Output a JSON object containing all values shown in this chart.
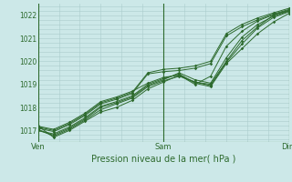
{
  "title": "",
  "xlabel": "Pression niveau de la mer( hPa )",
  "ylabel": "",
  "bg_color": "#cce8e8",
  "grid_color": "#aacccc",
  "line_color": "#2d6a2d",
  "x_ticks": [
    0,
    48,
    96
  ],
  "x_tick_labels": [
    "Ven",
    "Sam",
    "Dim"
  ],
  "ylim": [
    1016.5,
    1022.5
  ],
  "xlim": [
    0,
    96
  ],
  "yticks": [
    1017,
    1018,
    1019,
    1020,
    1021,
    1022
  ],
  "lines": [
    {
      "x": [
        0,
        6,
        12,
        18,
        24,
        30,
        36,
        42,
        48,
        54,
        60,
        66,
        72,
        78,
        84,
        90,
        96
      ],
      "y": [
        1017.2,
        1016.7,
        1017.0,
        1017.4,
        1017.8,
        1018.0,
        1018.3,
        1018.8,
        1019.1,
        1019.4,
        1019.1,
        1019.0,
        1020.0,
        1020.9,
        1021.5,
        1022.0,
        1022.2
      ]
    },
    {
      "x": [
        0,
        6,
        12,
        18,
        24,
        30,
        36,
        42,
        48,
        54,
        60,
        66,
        72,
        78,
        84,
        90,
        96
      ],
      "y": [
        1017.05,
        1016.75,
        1017.05,
        1017.45,
        1017.9,
        1018.15,
        1018.4,
        1018.9,
        1019.15,
        1019.35,
        1019.1,
        1018.95,
        1019.95,
        1020.75,
        1021.45,
        1021.9,
        1022.15
      ]
    },
    {
      "x": [
        0,
        6,
        12,
        18,
        24,
        30,
        36,
        42,
        48,
        54,
        60,
        66,
        72,
        78,
        84,
        90,
        96
      ],
      "y": [
        1017.0,
        1016.8,
        1017.1,
        1017.5,
        1018.0,
        1018.2,
        1018.45,
        1018.95,
        1019.2,
        1019.5,
        1019.2,
        1019.05,
        1020.15,
        1021.05,
        1021.6,
        1021.95,
        1022.18
      ]
    },
    {
      "x": [
        0,
        6,
        12,
        18,
        24,
        30,
        36,
        42,
        48,
        54,
        60,
        66,
        72,
        78,
        84,
        90,
        96
      ],
      "y": [
        1017.0,
        1016.85,
        1017.15,
        1017.55,
        1018.05,
        1018.25,
        1018.5,
        1019.0,
        1019.25,
        1019.45,
        1019.05,
        1018.9,
        1019.9,
        1020.55,
        1021.2,
        1021.7,
        1022.08
      ]
    },
    {
      "x": [
        0,
        6,
        12,
        18,
        24,
        30,
        36,
        42,
        48,
        54,
        60,
        66,
        72,
        78,
        84,
        90,
        96
      ],
      "y": [
        1017.1,
        1016.95,
        1017.25,
        1017.65,
        1018.15,
        1018.35,
        1018.6,
        1019.45,
        1019.55,
        1019.6,
        1019.7,
        1019.9,
        1021.1,
        1021.5,
        1021.8,
        1022.05,
        1022.25
      ]
    },
    {
      "x": [
        0,
        6,
        12,
        18,
        24,
        30,
        36,
        42,
        48,
        54,
        60,
        66,
        72,
        78,
        84,
        90,
        96
      ],
      "y": [
        1017.15,
        1017.0,
        1017.3,
        1017.7,
        1018.2,
        1018.4,
        1018.65,
        1019.5,
        1019.65,
        1019.7,
        1019.8,
        1020.0,
        1021.2,
        1021.6,
        1021.88,
        1022.1,
        1022.3
      ]
    },
    {
      "x": [
        0,
        6,
        12,
        18,
        24,
        30,
        36,
        42,
        48,
        54,
        60,
        66,
        72,
        78,
        84,
        90,
        96
      ],
      "y": [
        1017.18,
        1017.05,
        1017.35,
        1017.75,
        1018.25,
        1018.45,
        1018.7,
        1019.05,
        1019.3,
        1019.4,
        1019.0,
        1019.35,
        1020.65,
        1021.3,
        1021.75,
        1022.02,
        1022.22
      ]
    }
  ]
}
